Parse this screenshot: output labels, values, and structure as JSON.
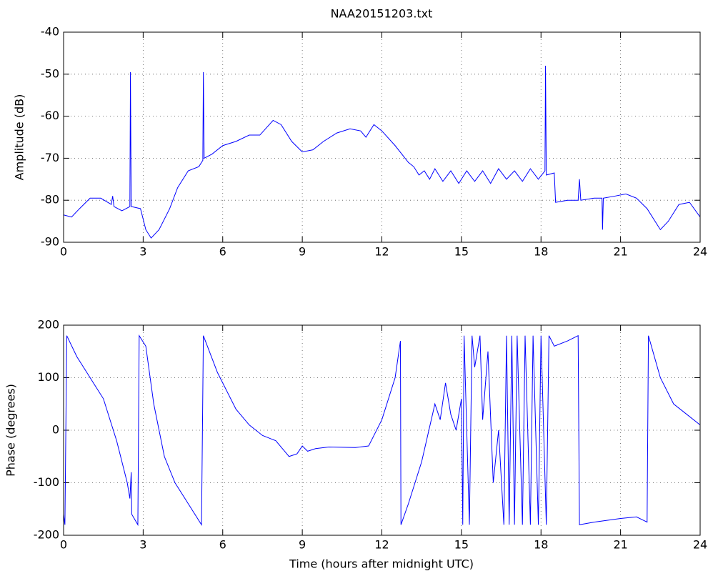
{
  "chart_data": [
    {
      "type": "line",
      "title": "NAA20151203.txt",
      "ylabel": "Amplitude (dB)",
      "x": [
        0,
        0.3,
        0.6,
        1.0,
        1.4,
        1.8,
        1.85,
        1.9,
        2.2,
        2.5,
        2.52,
        2.55,
        2.9,
        3.1,
        3.3,
        3.6,
        4.0,
        4.3,
        4.7,
        5.1,
        5.25,
        5.27,
        5.3,
        5.6,
        6.0,
        6.5,
        7.0,
        7.4,
        7.9,
        8.2,
        8.6,
        9.0,
        9.4,
        9.8,
        10.3,
        10.8,
        11.2,
        11.4,
        11.7,
        12.0,
        12.5,
        13.0,
        13.2,
        13.4,
        13.6,
        13.8,
        14.0,
        14.3,
        14.6,
        14.9,
        15.2,
        15.5,
        15.8,
        16.1,
        16.4,
        16.7,
        17.0,
        17.3,
        17.6,
        17.9,
        18.15,
        18.17,
        18.2,
        18.5,
        18.55,
        19.0,
        19.4,
        19.45,
        19.5,
        20.0,
        20.3,
        20.32,
        20.35,
        20.8,
        21.2,
        21.6,
        22.0,
        22.5,
        22.8,
        23.2,
        23.6,
        24.0
      ],
      "series": [
        {
          "color": "#0000ff",
          "values": [
            -83.5,
            -84,
            -82,
            -79.5,
            -79.5,
            -81,
            -79,
            -81.5,
            -82.5,
            -81.5,
            -49.5,
            -81.5,
            -82,
            -87,
            -89,
            -87,
            -82,
            -77,
            -73,
            -72,
            -70.5,
            -49.5,
            -70,
            -69,
            -67,
            -66,
            -64.5,
            -64.5,
            -61,
            -62,
            -66,
            -68.5,
            -68,
            -66,
            -64,
            -63,
            -63.5,
            -65,
            -62,
            -63.5,
            -67,
            -71,
            -72,
            -74,
            -73,
            -75,
            -72.5,
            -75.5,
            -73,
            -76,
            -73,
            -75.5,
            -73,
            -76,
            -72.5,
            -75,
            -73,
            -75.5,
            -72.5,
            -75,
            -73,
            -48,
            -74,
            -73.5,
            -80.5,
            -80,
            -80,
            -75,
            -80,
            -79.5,
            -79.5,
            -87,
            -79.5,
            -79,
            -78.5,
            -79.5,
            -82,
            -87,
            -85,
            -81,
            -80.5,
            -84
          ]
        }
      ],
      "xlim": [
        0,
        24
      ],
      "xticks": [
        0,
        3,
        6,
        9,
        12,
        15,
        18,
        21,
        24
      ],
      "ylim": [
        -90,
        -40
      ],
      "yticks": [
        -90,
        -80,
        -70,
        -60,
        -50,
        -40
      ],
      "grid": true
    },
    {
      "type": "line",
      "ylabel": "Phase (degrees)",
      "xlabel": "Time (hours after midnight UTC)",
      "x": [
        0,
        0.05,
        0.12,
        0.5,
        1.0,
        1.5,
        2.0,
        2.4,
        2.5,
        2.55,
        2.57,
        2.8,
        2.85,
        3.1,
        3.4,
        3.8,
        4.2,
        4.7,
        5.2,
        5.27,
        5.8,
        6.5,
        7.0,
        7.5,
        8.0,
        8.5,
        8.8,
        9.0,
        9.2,
        9.5,
        10.0,
        11.0,
        11.5,
        12.0,
        12.5,
        12.7,
        12.72,
        13.0,
        13.5,
        14.0,
        14.2,
        14.4,
        14.6,
        14.8,
        15.0,
        15.05,
        15.1,
        15.3,
        15.4,
        15.5,
        15.7,
        15.8,
        16.0,
        16.2,
        16.4,
        16.6,
        16.7,
        16.8,
        16.9,
        17.0,
        17.1,
        17.3,
        17.4,
        17.6,
        17.7,
        17.9,
        18.0,
        18.2,
        18.3,
        18.5,
        19.0,
        19.4,
        19.45,
        20.0,
        21.0,
        21.6,
        22.0,
        22.05,
        22.5,
        23.0,
        23.5,
        24.0
      ],
      "series": [
        {
          "color": "#0000ff",
          "values": [
            -160,
            -180,
            180,
            140,
            100,
            60,
            -20,
            -100,
            -130,
            -80,
            -160,
            -180,
            180,
            160,
            50,
            -50,
            -100,
            -140,
            -180,
            180,
            110,
            40,
            10,
            -10,
            -20,
            -50,
            -45,
            -30,
            -40,
            -35,
            -32,
            -33,
            -30,
            20,
            100,
            170,
            -180,
            -140,
            -60,
            50,
            20,
            90,
            30,
            0,
            60,
            -180,
            180,
            -180,
            180,
            120,
            180,
            20,
            150,
            -100,
            0,
            -180,
            180,
            -180,
            180,
            -180,
            180,
            -180,
            180,
            -180,
            180,
            -180,
            180,
            -180,
            180,
            160,
            170,
            180,
            -180,
            -175,
            -168,
            -165,
            -175,
            180,
            100,
            50,
            30,
            10
          ]
        }
      ],
      "xlim": [
        0,
        24
      ],
      "xticks": [
        0,
        3,
        6,
        9,
        12,
        15,
        18,
        21,
        24
      ],
      "ylim": [
        -200,
        200
      ],
      "yticks": [
        -200,
        -100,
        0,
        100,
        200
      ],
      "grid": true
    }
  ]
}
